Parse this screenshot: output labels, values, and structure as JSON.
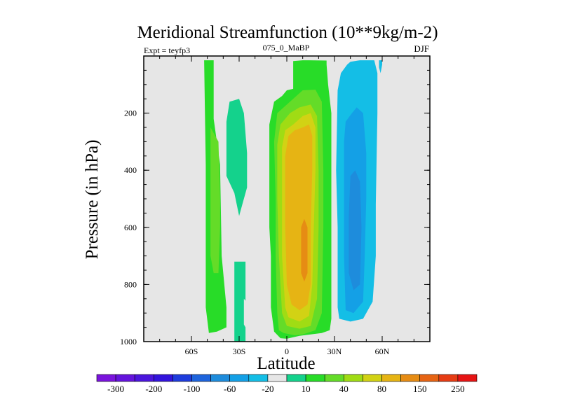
{
  "chart_data": {
    "type": "heatmap",
    "title": "Meridional Streamfunction (10**9kg/m-2)",
    "left_label": "Expt = teyfp3",
    "center_label": "075_0_MaBP",
    "right_label": "DJF",
    "xlabel": "Latitude",
    "ylabel": "Pressure (in hPa)",
    "xlim": [
      -90,
      90
    ],
    "ylim": [
      1000,
      0
    ],
    "x_ticks": [
      {
        "value": -60,
        "label": "60S"
      },
      {
        "value": -30,
        "label": "30S"
      },
      {
        "value": 0,
        "label": "0"
      },
      {
        "value": 30,
        "label": "30N"
      },
      {
        "value": 60,
        "label": "60N"
      }
    ],
    "y_ticks": [
      {
        "value": 200,
        "label": "200"
      },
      {
        "value": 400,
        "label": "400"
      },
      {
        "value": 600,
        "label": "600"
      },
      {
        "value": 800,
        "label": "800"
      },
      {
        "value": 1000,
        "label": "1000"
      }
    ],
    "no_data_color": "#e6e6e6",
    "colorbar": {
      "colors": [
        "#7a14dc",
        "#6414dc",
        "#4b16dc",
        "#3214dc",
        "#1e3cdc",
        "#1e64dc",
        "#1e8cdc",
        "#14a0e6",
        "#14bee6",
        "#e6e6e6",
        "#14d28c",
        "#28dc28",
        "#64dc28",
        "#a0dc14",
        "#d2d214",
        "#e6b414",
        "#e68c14",
        "#e66414",
        "#e63c14",
        "#e61414"
      ],
      "labels": [
        "-300",
        "-200",
        "-100",
        "-60",
        "-20",
        "10",
        "40",
        "80",
        "150",
        "250"
      ]
    },
    "regions": [
      {
        "level": 1,
        "points": [
          [
            -26,
            1000
          ],
          [
            -26,
            720
          ],
          [
            -33,
            720
          ],
          [
            -33,
            1000
          ]
        ]
      },
      {
        "level": 0,
        "points": [
          [
            -60,
            530
          ],
          [
            -59,
            535
          ],
          [
            -59,
            800
          ],
          [
            -60,
            805
          ]
        ]
      },
      {
        "level": 2,
        "points": [
          [
            -52,
            15
          ],
          [
            -46,
            15
          ],
          [
            -46,
            220
          ],
          [
            -42,
            380
          ],
          [
            -41,
            700
          ],
          [
            -38,
            880
          ],
          [
            -38,
            950
          ],
          [
            -44,
            965
          ],
          [
            -49,
            970
          ],
          [
            -51,
            880
          ],
          [
            -51,
            380
          ],
          [
            -52,
            15
          ]
        ]
      },
      {
        "level": 3,
        "points": [
          [
            -48,
            250
          ],
          [
            -43,
            300
          ],
          [
            -42,
            500
          ],
          [
            -42,
            600
          ],
          [
            -43,
            760
          ],
          [
            -46,
            760
          ],
          [
            -48,
            700
          ],
          [
            -48,
            300
          ]
        ]
      },
      {
        "level": 0,
        "points": [
          [
            -27,
            850
          ],
          [
            -24,
            870
          ],
          [
            -24,
            950
          ],
          [
            -26,
            950
          ],
          [
            -27,
            940
          ]
        ]
      },
      {
        "level": 1,
        "points": [
          [
            -38,
            230
          ],
          [
            -36,
            160
          ],
          [
            -30,
            150
          ],
          [
            -27,
            200
          ],
          [
            -25,
            340
          ],
          [
            -25,
            460
          ],
          [
            -28,
            520
          ],
          [
            -30,
            560
          ],
          [
            -33,
            480
          ],
          [
            -38,
            420
          ],
          [
            -38,
            230
          ]
        ]
      },
      {
        "level": 2,
        "points": [
          [
            -11,
            240
          ],
          [
            -8,
            160
          ],
          [
            -3,
            140
          ],
          [
            0,
            120
          ],
          [
            4,
            115
          ],
          [
            4,
            40
          ],
          [
            4,
            18
          ],
          [
            10,
            15
          ],
          [
            14,
            15
          ],
          [
            25,
            16
          ],
          [
            25,
            30
          ],
          [
            26,
            100
          ],
          [
            28,
            200
          ],
          [
            28,
            500
          ],
          [
            28,
            800
          ],
          [
            28,
            920
          ],
          [
            27,
            960
          ],
          [
            22,
            970
          ],
          [
            8,
            980
          ],
          [
            0,
            990
          ],
          [
            -4,
            988
          ],
          [
            -8,
            965
          ],
          [
            -10,
            880
          ],
          [
            -10,
            700
          ],
          [
            -11,
            600
          ],
          [
            -11,
            420
          ],
          [
            -11,
            240
          ]
        ]
      },
      {
        "level": 3,
        "points": [
          [
            -8,
            300
          ],
          [
            -6,
            200
          ],
          [
            0,
            170
          ],
          [
            6,
            140
          ],
          [
            10,
            120
          ],
          [
            18,
            118
          ],
          [
            22,
            160
          ],
          [
            23,
            400
          ],
          [
            23,
            600
          ],
          [
            22,
            900
          ],
          [
            18,
            960
          ],
          [
            10,
            975
          ],
          [
            5,
            978
          ],
          [
            -2,
            970
          ],
          [
            -5,
            960
          ],
          [
            -6,
            900
          ],
          [
            -7,
            700
          ],
          [
            -7,
            500
          ],
          [
            -8,
            300
          ]
        ]
      },
      {
        "level": 4,
        "points": [
          [
            -6,
            310
          ],
          [
            -4,
            240
          ],
          [
            2,
            200
          ],
          [
            8,
            180
          ],
          [
            15,
            170
          ],
          [
            19,
            210
          ],
          [
            20,
            400
          ],
          [
            20,
            600
          ],
          [
            19,
            850
          ],
          [
            15,
            945
          ],
          [
            8,
            955
          ],
          [
            0,
            945
          ],
          [
            -3,
            900
          ],
          [
            -5,
            700
          ],
          [
            -6,
            500
          ],
          [
            -6,
            310
          ]
        ]
      },
      {
        "level": 5,
        "points": [
          [
            -3,
            320
          ],
          [
            -1,
            260
          ],
          [
            4,
            240
          ],
          [
            10,
            210
          ],
          [
            15,
            200
          ],
          [
            18,
            250
          ],
          [
            18,
            400
          ],
          [
            17,
            600
          ],
          [
            16,
            800
          ],
          [
            14,
            910
          ],
          [
            8,
            930
          ],
          [
            1,
            915
          ],
          [
            -1,
            880
          ],
          [
            -3,
            700
          ],
          [
            -3,
            500
          ],
          [
            -3,
            320
          ]
        ]
      },
      {
        "level": 6,
        "points": [
          [
            -1,
            350
          ],
          [
            1,
            280
          ],
          [
            5,
            260
          ],
          [
            10,
            250
          ],
          [
            14,
            240
          ],
          [
            16,
            280
          ],
          [
            16,
            400
          ],
          [
            15,
            600
          ],
          [
            15,
            800
          ],
          [
            13,
            870
          ],
          [
            8,
            890
          ],
          [
            3,
            870
          ],
          [
            0,
            800
          ],
          [
            -1,
            600
          ],
          [
            -1,
            500
          ],
          [
            -1,
            350
          ]
        ]
      },
      {
        "level": 7,
        "points": [
          [
            9,
            600
          ],
          [
            11,
            570
          ],
          [
            13,
            600
          ],
          [
            13,
            760
          ],
          [
            11,
            790
          ],
          [
            9,
            760
          ],
          [
            9,
            600
          ]
        ]
      },
      {
        "level": -1,
        "points": [
          [
            46,
            15
          ],
          [
            55,
            15
          ],
          [
            57,
            60
          ],
          [
            57,
            200
          ],
          [
            56,
            520
          ],
          [
            56,
            700
          ],
          [
            54,
            860
          ],
          [
            48,
            920
          ],
          [
            40,
            930
          ],
          [
            33,
            920
          ],
          [
            32,
            880
          ],
          [
            32,
            600
          ],
          [
            31,
            400
          ],
          [
            32,
            120
          ],
          [
            34,
            60
          ],
          [
            38,
            30
          ],
          [
            40,
            20
          ],
          [
            46,
            15
          ]
        ]
      },
      {
        "level": -2,
        "points": [
          [
            37,
            230
          ],
          [
            41,
            200
          ],
          [
            44,
            180
          ],
          [
            48,
            200
          ],
          [
            50,
            340
          ],
          [
            50,
            500
          ],
          [
            49,
            700
          ],
          [
            48,
            860
          ],
          [
            42,
            900
          ],
          [
            37,
            890
          ],
          [
            36,
            700
          ],
          [
            36,
            500
          ],
          [
            36,
            300
          ],
          [
            37,
            230
          ]
        ]
      },
      {
        "level": -3,
        "points": [
          [
            40,
            420
          ],
          [
            43,
            400
          ],
          [
            46,
            440
          ],
          [
            47,
            600
          ],
          [
            46,
            800
          ],
          [
            42,
            820
          ],
          [
            39,
            760
          ],
          [
            39,
            560
          ],
          [
            40,
            420
          ]
        ]
      },
      {
        "level": -1,
        "points": [
          [
            58,
            15
          ],
          [
            60,
            15
          ],
          [
            60,
            30
          ],
          [
            59,
            60
          ],
          [
            58,
            40
          ]
        ]
      }
    ]
  }
}
